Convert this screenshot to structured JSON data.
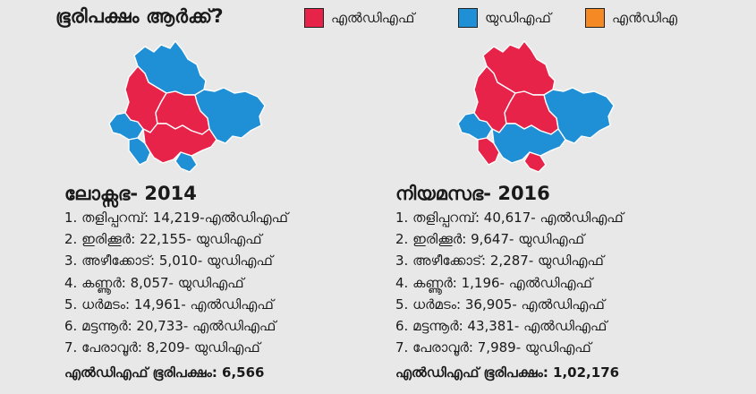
{
  "title": "ഭൂരിപക്ഷം ആർക്ക്?",
  "legend": [
    {
      "label": "എൽഡിഎഫ്",
      "color": "#e8234a"
    },
    {
      "label": "യുഡിഎഫ്",
      "color": "#1f8fd6"
    },
    {
      "label": "എൻഡിഎ",
      "color": "#f58a25"
    }
  ],
  "map_colors": {
    "ldf": "#e8234a",
    "udf": "#1f8fd6",
    "border": "#ffffff"
  },
  "panels": [
    {
      "title": "ലോക്സഭ- 2014",
      "rows": [
        "1. തളിപ്പറമ്പ്: 14,219-എൽഡിഎഫ്",
        "2. ഇരിക്കൂർ: 22,155- യുഡിഎഫ്",
        "3. അഴീക്കോട്: 5,010- യുഡിഎഫ്",
        "4. കണ്ണൂർ: 8,057- യുഡിഎഫ്",
        "5. ധർമടം: 14,961- എൽഡിഎഫ്",
        "6. മട്ടന്നൂർ: 20,733- എൽഡിഎഫ്",
        "7. പേരാവൂർ: 8,209- യുഡിഎഫ്"
      ],
      "majority": "എൽഡിഎഫ് ഭൂരിപക്ഷം: 6,566"
    },
    {
      "title": "നിയമസഭ- 2016",
      "rows": [
        "1. തളിപ്പറമ്പ്: 40,617- എൽഡിഎഫ്",
        "2. ഇരിക്കൂർ: 9,647- യുഡിഎഫ്",
        "3. അഴീക്കോട്: 2,287- യുഡിഎഫ്",
        "4. കണ്ണൂർ: 1,196- എൽഡിഎഫ്",
        "5. ധർമടം: 36,905- എൽഡിഎഫ്",
        "6. മട്ടന്നൂർ: 43,381- എൽഡിഎഫ്",
        "7. പേരാവൂർ: 7,989- യുഡിഎഫ്"
      ],
      "majority": "എൽഡിഎഫ് ഭൂരിപക്ഷം: 1,02,176"
    }
  ]
}
